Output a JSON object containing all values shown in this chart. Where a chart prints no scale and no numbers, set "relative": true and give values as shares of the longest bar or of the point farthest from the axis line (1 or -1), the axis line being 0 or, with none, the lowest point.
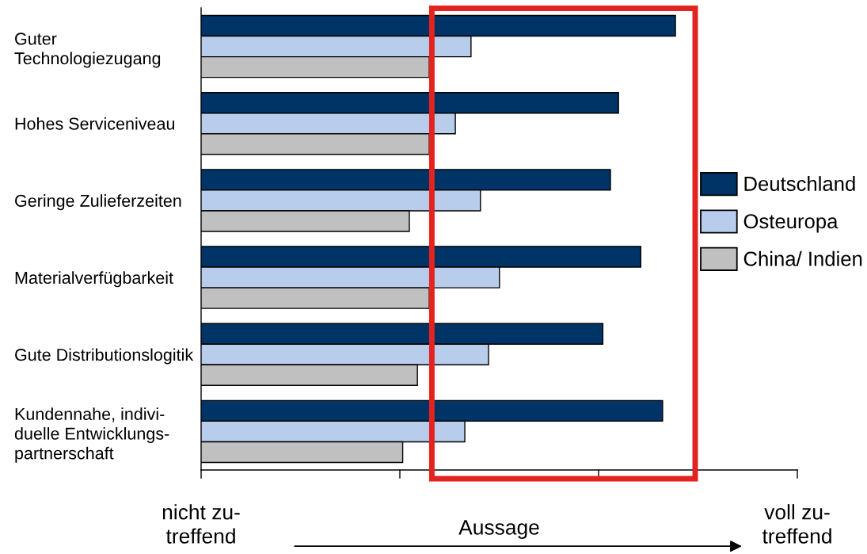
{
  "chart_data": {
    "type": "bar",
    "orientation": "horizontal",
    "relative": true,
    "categories": [
      "Guter\nTechnologiezugang",
      "Hohes Serviceniveau",
      "Geringe Zulieferzeiten",
      "Materialverfügbarkeit",
      "Gute Distributionslogitik",
      "Kundennahe, indivi-\nduelle Entwicklungs-\npartnerschaft"
    ],
    "series": [
      {
        "name": "Deutschland",
        "color": "#003366",
        "values": [
          1.0,
          0.88,
          0.863,
          0.927,
          0.847,
          0.973
        ]
      },
      {
        "name": "Osteuropa",
        "color": "#b8ccec",
        "values": [
          0.569,
          0.536,
          0.589,
          0.629,
          0.606,
          0.556
        ]
      },
      {
        "name": "China/ Indien",
        "color": "#c0c0c0",
        "values": [
          0.481,
          0.481,
          0.439,
          0.481,
          0.456,
          0.425
        ]
      }
    ],
    "xlabel": "Aussage",
    "annotations": [
      "nicht zu-\ntreffend",
      "voll zu-\ntreffend"
    ],
    "legend": "right"
  }
}
